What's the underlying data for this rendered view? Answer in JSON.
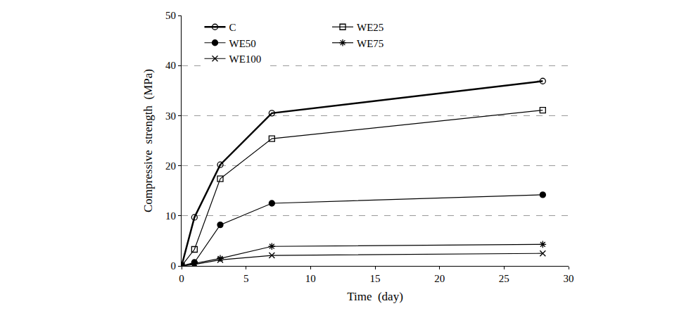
{
  "chart_data": {
    "type": "line",
    "x_label": "Time  (day)",
    "y_label": "Compressive  strength  (MPa)",
    "x": [
      0,
      1,
      3,
      7,
      28
    ],
    "series": [
      {
        "name": "C",
        "color": "#000000",
        "marker": "circle-open",
        "line_style": "solid",
        "values": [
          0,
          9.7,
          20.2,
          30.5,
          36.9
        ]
      },
      {
        "name": "WE25",
        "color": "#000000",
        "marker": "square-open",
        "line_style": "solid",
        "values": [
          0,
          3.3,
          17.4,
          25.4,
          31.1
        ]
      },
      {
        "name": "WE50",
        "color": "#000000",
        "marker": "circle",
        "line_style": "solid",
        "values": [
          0,
          0.7,
          8.2,
          12.5,
          14.2
        ]
      },
      {
        "name": "WE75",
        "color": "#000000",
        "marker": "asterisk-open",
        "line_style": "solid",
        "values": [
          0,
          0.5,
          1.5,
          3.9,
          4.3
        ]
      },
      {
        "name": "WE100",
        "color": "#000000",
        "marker": "x-thin-open",
        "line_style": "solid",
        "values": [
          0,
          0.3,
          1.2,
          2.1,
          2.5
        ]
      }
    ],
    "xlim": [
      0,
      30
    ],
    "xticks": [
      0,
      5,
      10,
      15,
      20,
      25,
      30
    ],
    "ylim": [
      0,
      50
    ],
    "yticks": [
      0,
      10,
      20,
      30,
      40,
      50
    ],
    "grid": true,
    "legend": "top-left"
  }
}
